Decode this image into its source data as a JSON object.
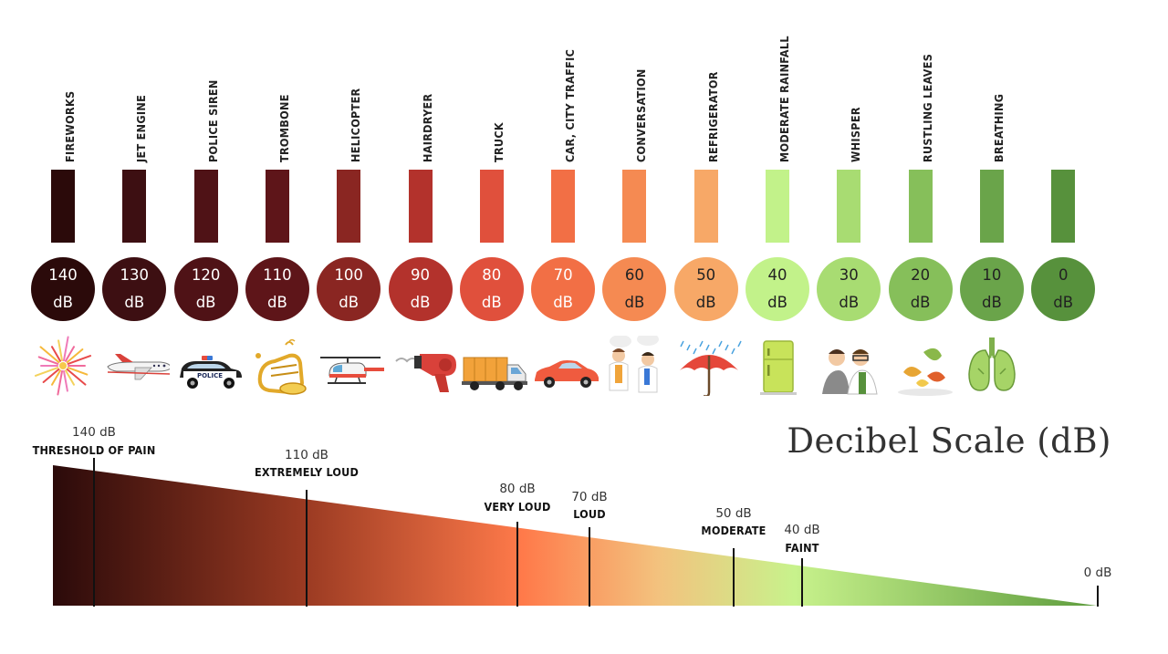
{
  "title": "Decibel Scale (dB)",
  "sources": [
    {
      "label": "FIREWORKS",
      "db": "140",
      "unit": "dB",
      "icon": "fireworks-icon",
      "bar_color": "#2b0a0a",
      "circle_color": "#2b0a0a",
      "text_color": "#ffffff"
    },
    {
      "label": "JET ENGINE",
      "db": "130",
      "unit": "dB",
      "icon": "airplane-icon",
      "bar_color": "#3d0f12",
      "circle_color": "#3d0f12",
      "text_color": "#ffffff"
    },
    {
      "label": "POLICE SIREN",
      "db": "120",
      "unit": "dB",
      "icon": "police-car-icon",
      "bar_color": "#4f1216",
      "circle_color": "#4f1216",
      "text_color": "#ffffff"
    },
    {
      "label": "TROMBONE",
      "db": "110",
      "unit": "dB",
      "icon": "trombone-icon",
      "bar_color": "#5e1519",
      "circle_color": "#5e1519",
      "text_color": "#ffffff"
    },
    {
      "label": "HELICOPTER",
      "db": "100",
      "unit": "dB",
      "icon": "helicopter-icon",
      "bar_color": "#8a2622",
      "circle_color": "#8a2622",
      "text_color": "#ffffff"
    },
    {
      "label": "HAIRDRYER",
      "db": "90",
      "unit": "dB",
      "icon": "hairdryer-icon",
      "bar_color": "#b3322c",
      "circle_color": "#b3322c",
      "text_color": "#ffffff"
    },
    {
      "label": "TRUCK",
      "db": "80",
      "unit": "dB",
      "icon": "truck-icon",
      "bar_color": "#e0503c",
      "circle_color": "#e0503c",
      "text_color": "#ffffff"
    },
    {
      "label": "CAR, CITY TRAFFIC",
      "db": "70",
      "unit": "dB",
      "icon": "car-icon",
      "bar_color": "#f26f45",
      "circle_color": "#f26f45",
      "text_color": "#ffffff"
    },
    {
      "label": "CONVERSATION",
      "db": "60",
      "unit": "dB",
      "icon": "conversation-icon",
      "bar_color": "#f58a52",
      "circle_color": "#f58a52",
      "text_color": "#222222"
    },
    {
      "label": "REFRIGERATOR",
      "db": "50",
      "unit": "dB",
      "icon": "umbrella-rain-icon",
      "bar_color": "#f7a867",
      "circle_color": "#f7a867",
      "text_color": "#222222"
    },
    {
      "label": "MODERATE RAINFALL",
      "db": "40",
      "unit": "dB",
      "icon": "refrigerator-icon",
      "bar_color": "#c2f28a",
      "circle_color": "#c2f28a",
      "text_color": "#222222"
    },
    {
      "label": "WHISPER",
      "db": "30",
      "unit": "dB",
      "icon": "whisper-icon",
      "bar_color": "#a8dc72",
      "circle_color": "#a8dc72",
      "text_color": "#222222"
    },
    {
      "label": "RUSTLING LEAVES",
      "db": "20",
      "unit": "dB",
      "icon": "leaves-icon",
      "bar_color": "#86bf5a",
      "circle_color": "#86bf5a",
      "text_color": "#222222"
    },
    {
      "label": "BREATHING",
      "db": "10",
      "unit": "dB",
      "icon": "lungs-icon",
      "bar_color": "#6aa44a",
      "circle_color": "#6aa44a",
      "text_color": "#222222"
    },
    {
      "label": "",
      "db": "0",
      "unit": "dB",
      "icon": "none",
      "bar_color": "#57913c",
      "circle_color": "#57913c",
      "text_color": "#222222"
    }
  ],
  "scale_markers": [
    {
      "db": "140 dB",
      "label": "THRESHOLD OF PAIN"
    },
    {
      "db": "110 dB",
      "label": "EXTREMELY LOUD"
    },
    {
      "db": "80 dB",
      "label": "VERY LOUD"
    },
    {
      "db": "70 dB",
      "label": "LOUD"
    },
    {
      "db": "50 dB",
      "label": "MODERATE"
    },
    {
      "db": "40 dB",
      "label": "FAINT"
    },
    {
      "db": "0 dB",
      "label": ""
    }
  ],
  "gradient_colors": [
    "#2b0a0a",
    "#9a3a22",
    "#ff7a4a",
    "#f3c27e",
    "#c8f28c",
    "#5e9c3e"
  ]
}
